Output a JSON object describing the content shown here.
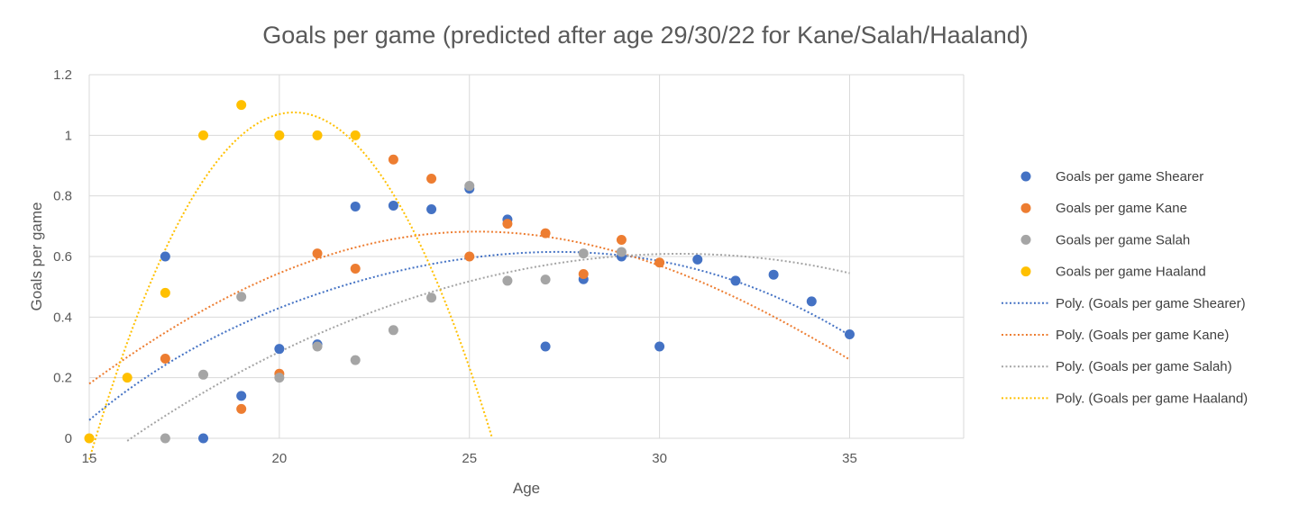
{
  "chart_data": {
    "type": "scatter",
    "title": "Goals per game (predicted after age 29/30/22 for Kane/Salah/Haaland)",
    "xlabel": "Age",
    "ylabel": "Goals per game",
    "xlim": [
      15,
      38
    ],
    "ylim": [
      0,
      1.2
    ],
    "x_ticks": [
      15,
      20,
      25,
      30,
      35
    ],
    "y_ticks": [
      0,
      0.2,
      0.4,
      0.6,
      0.8,
      1,
      1.2
    ],
    "y_tick_labels": [
      "0",
      "0.2",
      "0.4",
      "0.6",
      "0.8",
      "1",
      "1.2"
    ],
    "grid": true,
    "legend_position": "right",
    "series": [
      {
        "name": "Goals per game Shearer",
        "color": "#4472c4",
        "points": [
          [
            17,
            0.6
          ],
          [
            18,
            0.0
          ],
          [
            19,
            0.14
          ],
          [
            20,
            0.295
          ],
          [
            21,
            0.31
          ],
          [
            22,
            0.765
          ],
          [
            23,
            0.768
          ],
          [
            24,
            0.756
          ],
          [
            25,
            0.824
          ],
          [
            26,
            0.722
          ],
          [
            27,
            0.303
          ],
          [
            28,
            0.525
          ],
          [
            29,
            0.6
          ],
          [
            30,
            0.303
          ],
          [
            31,
            0.59
          ],
          [
            32,
            0.52
          ],
          [
            33,
            0.54
          ],
          [
            34,
            0.452
          ],
          [
            35,
            0.343
          ]
        ]
      },
      {
        "name": "Goals per game Kane",
        "color": "#ed7d31",
        "points": [
          [
            17,
            0.263
          ],
          [
            19,
            0.097
          ],
          [
            20,
            0.213
          ],
          [
            21,
            0.61
          ],
          [
            22,
            0.56
          ],
          [
            23,
            0.92
          ],
          [
            24,
            0.857
          ],
          [
            25,
            0.6
          ],
          [
            26,
            0.708
          ],
          [
            27,
            0.677
          ],
          [
            28,
            0.542
          ],
          [
            29,
            0.655
          ],
          [
            30,
            0.58
          ]
        ]
      },
      {
        "name": "Goals per game Salah",
        "color": "#a5a5a5",
        "points": [
          [
            17,
            0.0
          ],
          [
            18,
            0.21
          ],
          [
            19,
            0.467
          ],
          [
            20,
            0.2
          ],
          [
            21,
            0.303
          ],
          [
            22,
            0.258
          ],
          [
            23,
            0.357
          ],
          [
            24,
            0.464
          ],
          [
            25,
            0.833
          ],
          [
            26,
            0.52
          ],
          [
            27,
            0.524
          ],
          [
            28,
            0.61
          ],
          [
            29,
            0.615
          ]
        ]
      },
      {
        "name": "Goals per game Haaland",
        "color": "#ffc000",
        "points": [
          [
            15,
            0.0
          ],
          [
            16,
            0.2
          ],
          [
            17,
            0.48
          ],
          [
            18,
            1.0
          ],
          [
            19,
            1.1
          ],
          [
            20,
            1.0
          ],
          [
            21,
            1.0
          ],
          [
            22,
            1.0
          ]
        ]
      }
    ],
    "trendlines": [
      {
        "name": "Poly. (Goals per game Shearer)",
        "color": "#4472c4",
        "type": "polynomial",
        "x_range": [
          15,
          35
        ],
        "points": [
          [
            15,
            0.06
          ],
          [
            20,
            0.43
          ],
          [
            25,
            0.595
          ],
          [
            27.5,
            0.615
          ],
          [
            30,
            0.585
          ],
          [
            35,
            0.34
          ]
        ]
      },
      {
        "name": "Poly. (Goals per game Kane)",
        "color": "#ed7d31",
        "type": "polynomial",
        "x_range": [
          15,
          35
        ],
        "points": [
          [
            15,
            0.18
          ],
          [
            20,
            0.545
          ],
          [
            25,
            0.682
          ],
          [
            30,
            0.57
          ],
          [
            35,
            0.26
          ]
        ]
      },
      {
        "name": "Poly. (Goals per game Salah)",
        "color": "#a5a5a5",
        "type": "polynomial",
        "x_range": [
          16,
          35
        ],
        "points": [
          [
            16.1,
            0.0
          ],
          [
            20,
            0.285
          ],
          [
            25,
            0.518
          ],
          [
            30,
            0.608
          ],
          [
            35,
            0.545
          ]
        ]
      },
      {
        "name": "Poly. (Goals per game Haaland)",
        "color": "#ffc000",
        "type": "polynomial",
        "x_range": [
          15,
          25.6
        ],
        "points": [
          [
            15,
            -0.07
          ],
          [
            20.5,
            1.075
          ],
          [
            25.6,
            0.0
          ]
        ]
      }
    ]
  }
}
